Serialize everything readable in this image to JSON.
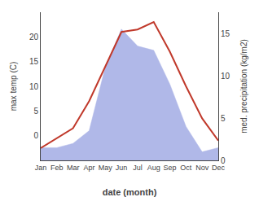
{
  "chart_data": {
    "type": "line",
    "categories": [
      "Jan",
      "Feb",
      "Mar",
      "Apr",
      "May",
      "Jun",
      "Jul",
      "Aug",
      "Sep",
      "Oct",
      "Nov",
      "Dec"
    ],
    "series": [
      {
        "type": "area",
        "axis": "y2",
        "color": "#b0b8e8",
        "values": [
          1.5,
          1.5,
          2.0,
          3.5,
          11.0,
          15.5,
          13.5,
          13.0,
          9.0,
          4.0,
          1.0,
          1.5
        ]
      },
      {
        "type": "line",
        "color": "#c0392b",
        "values": [
          -2.5,
          -0.5,
          1.5,
          7.0,
          14.0,
          21.0,
          21.5,
          23.0,
          17.0,
          10.0,
          3.5,
          -1.0
        ]
      }
    ],
    "xlabel": "date (month)",
    "ylabel": "max temp (C)",
    "y2label": "med. precipitation (kg/m2)",
    "ylim": [
      -5,
      25
    ],
    "yticks": [
      0,
      5,
      10,
      15,
      20
    ],
    "y2lim": [
      0,
      17.5
    ],
    "y2ticks": [
      0,
      5,
      10,
      15
    ],
    "grid": false
  }
}
